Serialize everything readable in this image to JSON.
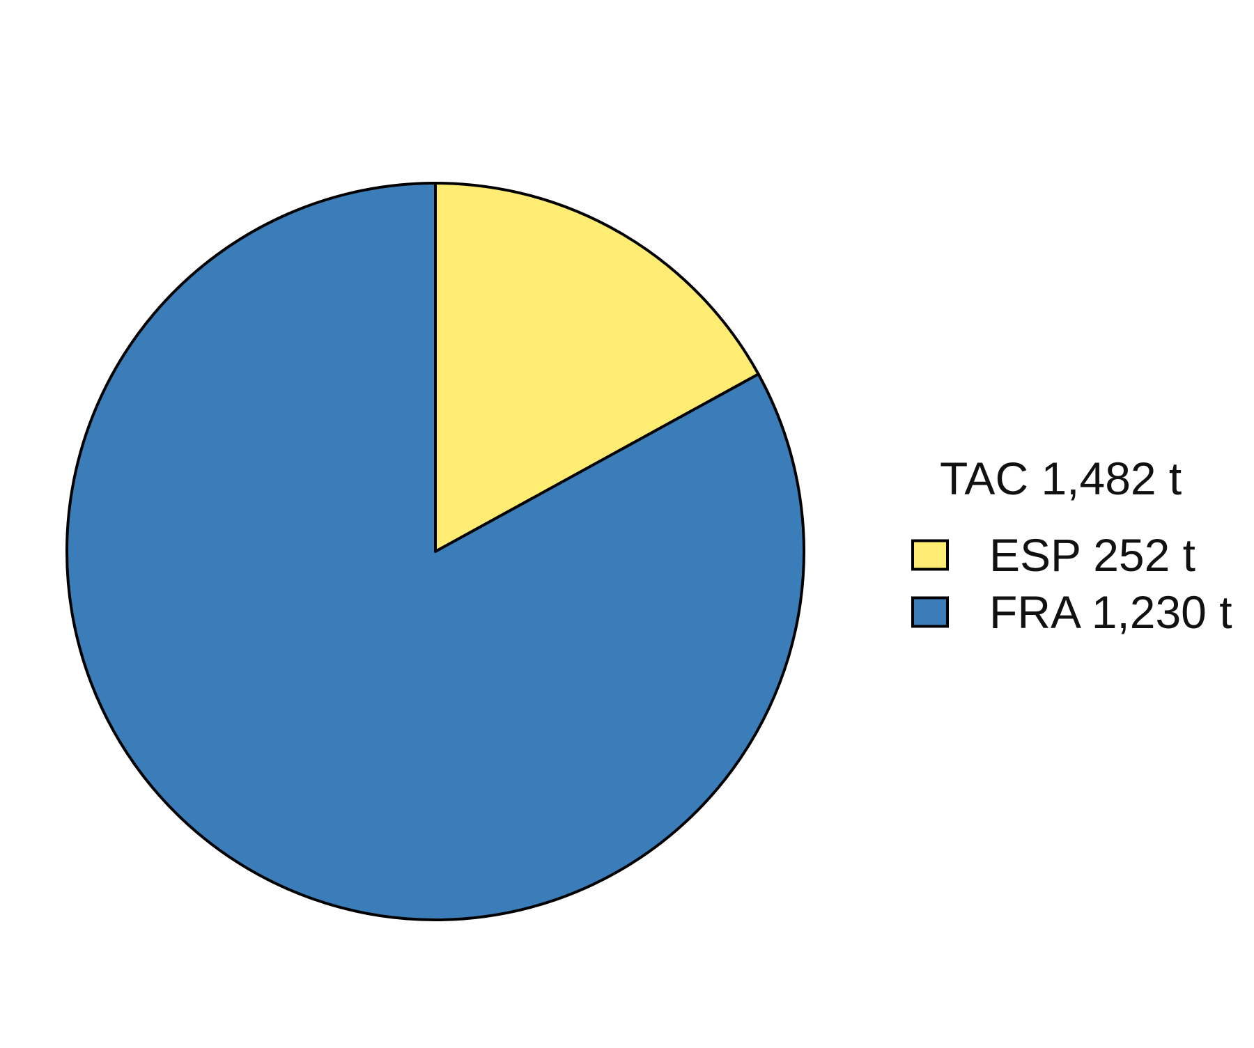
{
  "chart_data": {
    "type": "pie",
    "legend": {
      "title": "TAC 1,482 t",
      "position": "right"
    },
    "series": [
      {
        "name": "ESP 252 t",
        "value": 252,
        "color": "#FFED73"
      },
      {
        "name": "FRA 1,230 t",
        "value": 1230,
        "color": "#3A7DB8"
      }
    ],
    "total": 1482,
    "start_angle_deg": 0,
    "direction": "clockwise",
    "slice_stroke_color": "#000000"
  }
}
